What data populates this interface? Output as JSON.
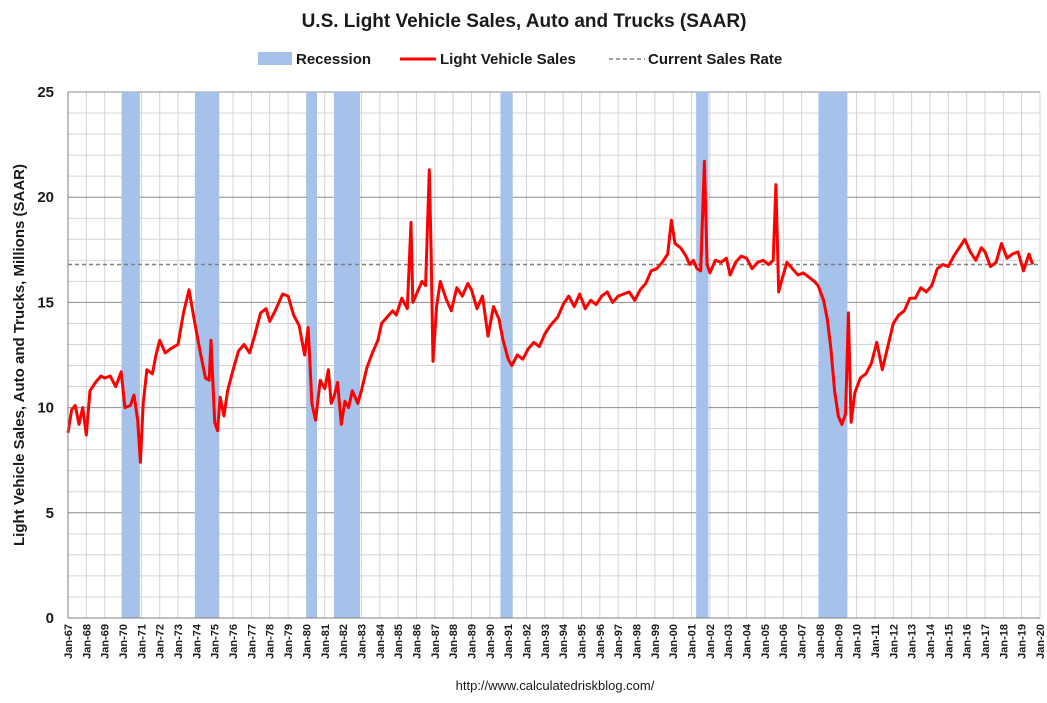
{
  "chart_data": {
    "type": "line",
    "title": "U.S. Light Vehicle Sales, Auto and Trucks (SAAR)",
    "ylabel": "Light Vehicle Sales, Auto and Trucks, Millions (SAAR)",
    "xlabel": "",
    "source": "http://www.calculatedriskblog.com/",
    "ylim": [
      0,
      25
    ],
    "yticks": [
      0,
      5,
      10,
      15,
      20,
      25
    ],
    "xlim": [
      1967.0,
      2020.0
    ],
    "xtick_labels": [
      "Jan-67",
      "Jan-68",
      "Jan-69",
      "Jan-70",
      "Jan-71",
      "Jan-72",
      "Jan-73",
      "Jan-74",
      "Jan-75",
      "Jan-76",
      "Jan-77",
      "Jan-78",
      "Jan-79",
      "Jan-80",
      "Jan-81",
      "Jan-82",
      "Jan-83",
      "Jan-84",
      "Jan-85",
      "Jan-86",
      "Jan-87",
      "Jan-88",
      "Jan-89",
      "Jan-90",
      "Jan-91",
      "Jan-92",
      "Jan-93",
      "Jan-94",
      "Jan-95",
      "Jan-96",
      "Jan-97",
      "Jan-98",
      "Jan-99",
      "Jan-00",
      "Jan-01",
      "Jan-02",
      "Jan-03",
      "Jan-04",
      "Jan-05",
      "Jan-06",
      "Jan-07",
      "Jan-08",
      "Jan-09",
      "Jan-10",
      "Jan-11",
      "Jan-12",
      "Jan-13",
      "Jan-14",
      "Jan-15",
      "Jan-16",
      "Jan-17",
      "Jan-18",
      "Jan-19",
      "Jan-20"
    ],
    "grid": true,
    "legend_position": "top-center",
    "legend": [
      {
        "name": "Recession",
        "style": "band",
        "color": "#a6c2ea"
      },
      {
        "name": "Light Vehicle Sales",
        "style": "line",
        "color": "#ff0000"
      },
      {
        "name": "Current Sales Rate",
        "style": "dashed",
        "color": "#7f7f7f"
      }
    ],
    "recessions": [
      [
        1969.92,
        1970.92
      ],
      [
        1973.92,
        1975.25
      ],
      [
        1980.0,
        1980.58
      ],
      [
        1981.5,
        1982.92
      ],
      [
        1990.58,
        1991.25
      ],
      [
        2001.25,
        2001.92
      ],
      [
        2007.92,
        2009.5
      ]
    ],
    "current_rate": 16.8,
    "series": [
      {
        "name": "Light Vehicle Sales",
        "color": "#ff0000",
        "points": [
          [
            1967.0,
            8.8
          ],
          [
            1967.2,
            9.9
          ],
          [
            1967.4,
            10.1
          ],
          [
            1967.6,
            9.2
          ],
          [
            1967.8,
            10.0
          ],
          [
            1968.0,
            8.7
          ],
          [
            1968.2,
            10.8
          ],
          [
            1968.5,
            11.2
          ],
          [
            1968.8,
            11.5
          ],
          [
            1969.0,
            11.4
          ],
          [
            1969.3,
            11.5
          ],
          [
            1969.6,
            11.0
          ],
          [
            1969.9,
            11.7
          ],
          [
            1970.1,
            10.0
          ],
          [
            1970.4,
            10.1
          ],
          [
            1970.6,
            10.6
          ],
          [
            1970.8,
            9.4
          ],
          [
            1970.95,
            7.4
          ],
          [
            1971.1,
            10.2
          ],
          [
            1971.3,
            11.8
          ],
          [
            1971.6,
            11.6
          ],
          [
            1971.8,
            12.5
          ],
          [
            1972.0,
            13.2
          ],
          [
            1972.3,
            12.6
          ],
          [
            1972.6,
            12.8
          ],
          [
            1973.0,
            13.0
          ],
          [
            1973.3,
            14.5
          ],
          [
            1973.6,
            15.6
          ],
          [
            1973.9,
            14.1
          ],
          [
            1974.2,
            12.7
          ],
          [
            1974.5,
            11.4
          ],
          [
            1974.7,
            11.3
          ],
          [
            1974.8,
            13.2
          ],
          [
            1975.0,
            9.3
          ],
          [
            1975.15,
            8.9
          ],
          [
            1975.3,
            10.5
          ],
          [
            1975.5,
            9.6
          ],
          [
            1975.7,
            10.8
          ],
          [
            1976.0,
            11.8
          ],
          [
            1976.3,
            12.7
          ],
          [
            1976.6,
            13.0
          ],
          [
            1976.9,
            12.6
          ],
          [
            1977.2,
            13.5
          ],
          [
            1977.5,
            14.5
          ],
          [
            1977.8,
            14.7
          ],
          [
            1978.0,
            14.1
          ],
          [
            1978.3,
            14.6
          ],
          [
            1978.7,
            15.4
          ],
          [
            1979.0,
            15.3
          ],
          [
            1979.3,
            14.4
          ],
          [
            1979.6,
            13.9
          ],
          [
            1979.9,
            12.5
          ],
          [
            1980.1,
            13.8
          ],
          [
            1980.3,
            10.2
          ],
          [
            1980.5,
            9.4
          ],
          [
            1980.75,
            11.3
          ],
          [
            1981.0,
            10.9
          ],
          [
            1981.2,
            11.8
          ],
          [
            1981.35,
            10.2
          ],
          [
            1981.5,
            10.5
          ],
          [
            1981.7,
            11.2
          ],
          [
            1981.9,
            9.2
          ],
          [
            1982.1,
            10.3
          ],
          [
            1982.3,
            10.0
          ],
          [
            1982.5,
            10.8
          ],
          [
            1982.8,
            10.2
          ],
          [
            1983.0,
            10.8
          ],
          [
            1983.3,
            11.9
          ],
          [
            1983.6,
            12.6
          ],
          [
            1983.9,
            13.2
          ],
          [
            1984.1,
            14.0
          ],
          [
            1984.4,
            14.3
          ],
          [
            1984.7,
            14.6
          ],
          [
            1984.9,
            14.4
          ],
          [
            1985.2,
            15.2
          ],
          [
            1985.5,
            14.7
          ],
          [
            1985.7,
            18.8
          ],
          [
            1985.8,
            15.0
          ],
          [
            1986.0,
            15.4
          ],
          [
            1986.3,
            16.0
          ],
          [
            1986.5,
            15.8
          ],
          [
            1986.7,
            21.3
          ],
          [
            1986.8,
            17.4
          ],
          [
            1986.9,
            12.2
          ],
          [
            1987.1,
            14.8
          ],
          [
            1987.3,
            16.0
          ],
          [
            1987.6,
            15.2
          ],
          [
            1987.9,
            14.6
          ],
          [
            1988.2,
            15.7
          ],
          [
            1988.5,
            15.3
          ],
          [
            1988.8,
            15.9
          ],
          [
            1989.0,
            15.6
          ],
          [
            1989.3,
            14.7
          ],
          [
            1989.6,
            15.3
          ],
          [
            1989.9,
            13.4
          ],
          [
            1990.2,
            14.8
          ],
          [
            1990.5,
            14.2
          ],
          [
            1990.7,
            13.3
          ],
          [
            1991.0,
            12.3
          ],
          [
            1991.2,
            12.0
          ],
          [
            1991.5,
            12.5
          ],
          [
            1991.8,
            12.3
          ],
          [
            1992.1,
            12.8
          ],
          [
            1992.4,
            13.1
          ],
          [
            1992.7,
            12.9
          ],
          [
            1993.0,
            13.5
          ],
          [
            1993.3,
            13.9
          ],
          [
            1993.7,
            14.3
          ],
          [
            1994.0,
            14.9
          ],
          [
            1994.3,
            15.3
          ],
          [
            1994.6,
            14.8
          ],
          [
            1994.9,
            15.4
          ],
          [
            1995.2,
            14.7
          ],
          [
            1995.5,
            15.1
          ],
          [
            1995.8,
            14.9
          ],
          [
            1996.1,
            15.3
          ],
          [
            1996.4,
            15.5
          ],
          [
            1996.7,
            15.0
          ],
          [
            1997.0,
            15.3
          ],
          [
            1997.3,
            15.4
          ],
          [
            1997.6,
            15.5
          ],
          [
            1997.9,
            15.1
          ],
          [
            1998.2,
            15.6
          ],
          [
            1998.5,
            15.9
          ],
          [
            1998.8,
            16.5
          ],
          [
            1999.1,
            16.6
          ],
          [
            1999.4,
            16.9
          ],
          [
            1999.7,
            17.3
          ],
          [
            1999.9,
            18.9
          ],
          [
            2000.1,
            17.8
          ],
          [
            2000.4,
            17.6
          ],
          [
            2000.7,
            17.2
          ],
          [
            2000.9,
            16.8
          ],
          [
            2001.1,
            17.0
          ],
          [
            2001.3,
            16.6
          ],
          [
            2001.5,
            16.5
          ],
          [
            2001.7,
            21.7
          ],
          [
            2001.85,
            16.8
          ],
          [
            2002.0,
            16.4
          ],
          [
            2002.3,
            17.0
          ],
          [
            2002.6,
            16.9
          ],
          [
            2002.9,
            17.1
          ],
          [
            2003.1,
            16.3
          ],
          [
            2003.4,
            16.9
          ],
          [
            2003.7,
            17.2
          ],
          [
            2004.0,
            17.1
          ],
          [
            2004.3,
            16.6
          ],
          [
            2004.6,
            16.9
          ],
          [
            2004.9,
            17.0
          ],
          [
            2005.2,
            16.8
          ],
          [
            2005.45,
            17.0
          ],
          [
            2005.6,
            20.6
          ],
          [
            2005.75,
            15.5
          ],
          [
            2005.9,
            16.0
          ],
          [
            2006.2,
            16.9
          ],
          [
            2006.5,
            16.6
          ],
          [
            2006.8,
            16.3
          ],
          [
            2007.1,
            16.4
          ],
          [
            2007.4,
            16.2
          ],
          [
            2007.7,
            16.0
          ],
          [
            2007.9,
            15.8
          ],
          [
            2008.2,
            15.1
          ],
          [
            2008.4,
            14.2
          ],
          [
            2008.6,
            12.8
          ],
          [
            2008.8,
            10.8
          ],
          [
            2009.0,
            9.6
          ],
          [
            2009.2,
            9.2
          ],
          [
            2009.4,
            9.7
          ],
          [
            2009.55,
            14.5
          ],
          [
            2009.7,
            9.3
          ],
          [
            2009.9,
            10.7
          ],
          [
            2010.2,
            11.4
          ],
          [
            2010.5,
            11.6
          ],
          [
            2010.8,
            12.1
          ],
          [
            2011.1,
            13.1
          ],
          [
            2011.4,
            11.8
          ],
          [
            2011.7,
            12.9
          ],
          [
            2012.0,
            14.0
          ],
          [
            2012.3,
            14.4
          ],
          [
            2012.6,
            14.6
          ],
          [
            2012.9,
            15.2
          ],
          [
            2013.2,
            15.2
          ],
          [
            2013.5,
            15.7
          ],
          [
            2013.8,
            15.5
          ],
          [
            2014.1,
            15.8
          ],
          [
            2014.4,
            16.6
          ],
          [
            2014.7,
            16.8
          ],
          [
            2015.0,
            16.7
          ],
          [
            2015.3,
            17.2
          ],
          [
            2015.6,
            17.6
          ],
          [
            2015.9,
            18.0
          ],
          [
            2016.2,
            17.4
          ],
          [
            2016.5,
            17.0
          ],
          [
            2016.8,
            17.6
          ],
          [
            2017.0,
            17.4
          ],
          [
            2017.3,
            16.7
          ],
          [
            2017.6,
            16.9
          ],
          [
            2017.9,
            17.8
          ],
          [
            2018.2,
            17.1
          ],
          [
            2018.5,
            17.3
          ],
          [
            2018.8,
            17.4
          ],
          [
            2019.1,
            16.5
          ],
          [
            2019.4,
            17.3
          ],
          [
            2019.6,
            16.8
          ]
        ]
      }
    ]
  }
}
